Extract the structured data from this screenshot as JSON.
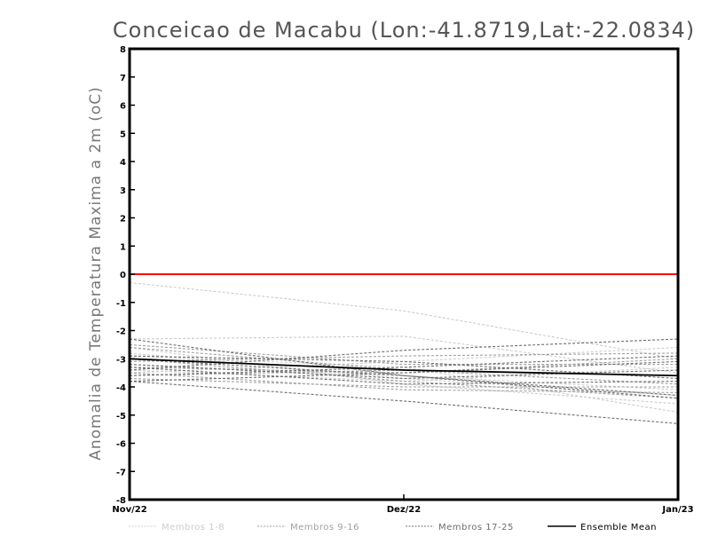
{
  "chart_data": {
    "type": "line",
    "title": "Conceicao de Macabu (Lon:-41.8719,Lat:-22.0834)",
    "xlabel": "",
    "ylabel": "Anomalia de Temperatura Maxima a 2m (oC)",
    "x_categories": [
      "Nov/22",
      "Dez/22",
      "Jan/23"
    ],
    "ylim": [
      -8,
      8
    ],
    "yticks": [
      8,
      7,
      6,
      5,
      4,
      3,
      2,
      1,
      0,
      -1,
      -2,
      -3,
      -4,
      -5,
      -6,
      -7,
      -8
    ],
    "reference_line": {
      "y": 0,
      "color": "#ff0000"
    },
    "groups": [
      {
        "name": "Membros 1-8",
        "color": "#cccccc",
        "style": "dashed",
        "series": [
          [
            -0.3,
            -1.3,
            -3.0
          ],
          [
            -2.3,
            -2.2,
            -3.5
          ],
          [
            -2.9,
            -3.3,
            -4.9
          ],
          [
            -3.2,
            -3.6,
            -4.1
          ],
          [
            -2.6,
            -3.9,
            -4.6
          ],
          [
            -3.5,
            -3.1,
            -2.6
          ],
          [
            -3.4,
            -3.8,
            -3.3
          ],
          [
            -2.8,
            -3.7,
            -4.3
          ]
        ]
      },
      {
        "name": "Membros 9-16",
        "color": "#a0a0a0",
        "style": "dashed",
        "series": [
          [
            -2.6,
            -3.4,
            -3.9
          ],
          [
            -3.3,
            -3.5,
            -3.0
          ],
          [
            -3.0,
            -3.8,
            -4.4
          ],
          [
            -3.6,
            -3.4,
            -3.6
          ],
          [
            -3.7,
            -4.0,
            -4.0
          ],
          [
            -2.5,
            -3.2,
            -3.2
          ],
          [
            -3.1,
            -2.9,
            -2.8
          ],
          [
            -3.5,
            -4.1,
            -4.2
          ]
        ]
      },
      {
        "name": "Membros 17-25",
        "color": "#6e6e6e",
        "style": "dashed",
        "series": [
          [
            -2.3,
            -3.6,
            -4.3
          ],
          [
            -3.4,
            -2.7,
            -2.3
          ],
          [
            -3.8,
            -4.5,
            -5.3
          ],
          [
            -2.9,
            -3.1,
            -3.7
          ],
          [
            -3.2,
            -3.7,
            -3.4
          ],
          [
            -3.6,
            -3.3,
            -2.9
          ],
          [
            -3.0,
            -3.6,
            -4.4
          ],
          [
            -3.8,
            -3.5,
            -3.1
          ],
          [
            -3.3,
            -3.9,
            -3.8
          ]
        ]
      },
      {
        "name": "Ensemble Mean",
        "color": "#000000",
        "style": "solid",
        "series": [
          [
            -3.0,
            -3.4,
            -3.6
          ]
        ]
      }
    ],
    "legend": {
      "placement": "bottom",
      "entries": [
        {
          "label": "Membros 1-8",
          "color": "#cccccc",
          "style": "dashed"
        },
        {
          "label": "Membros 9-16",
          "color": "#a0a0a0",
          "style": "dashed"
        },
        {
          "label": "Membros 17-25",
          "color": "#6e6e6e",
          "style": "dashed"
        },
        {
          "label": "Ensemble Mean",
          "color": "#000000",
          "style": "solid"
        }
      ]
    },
    "grid": false
  }
}
